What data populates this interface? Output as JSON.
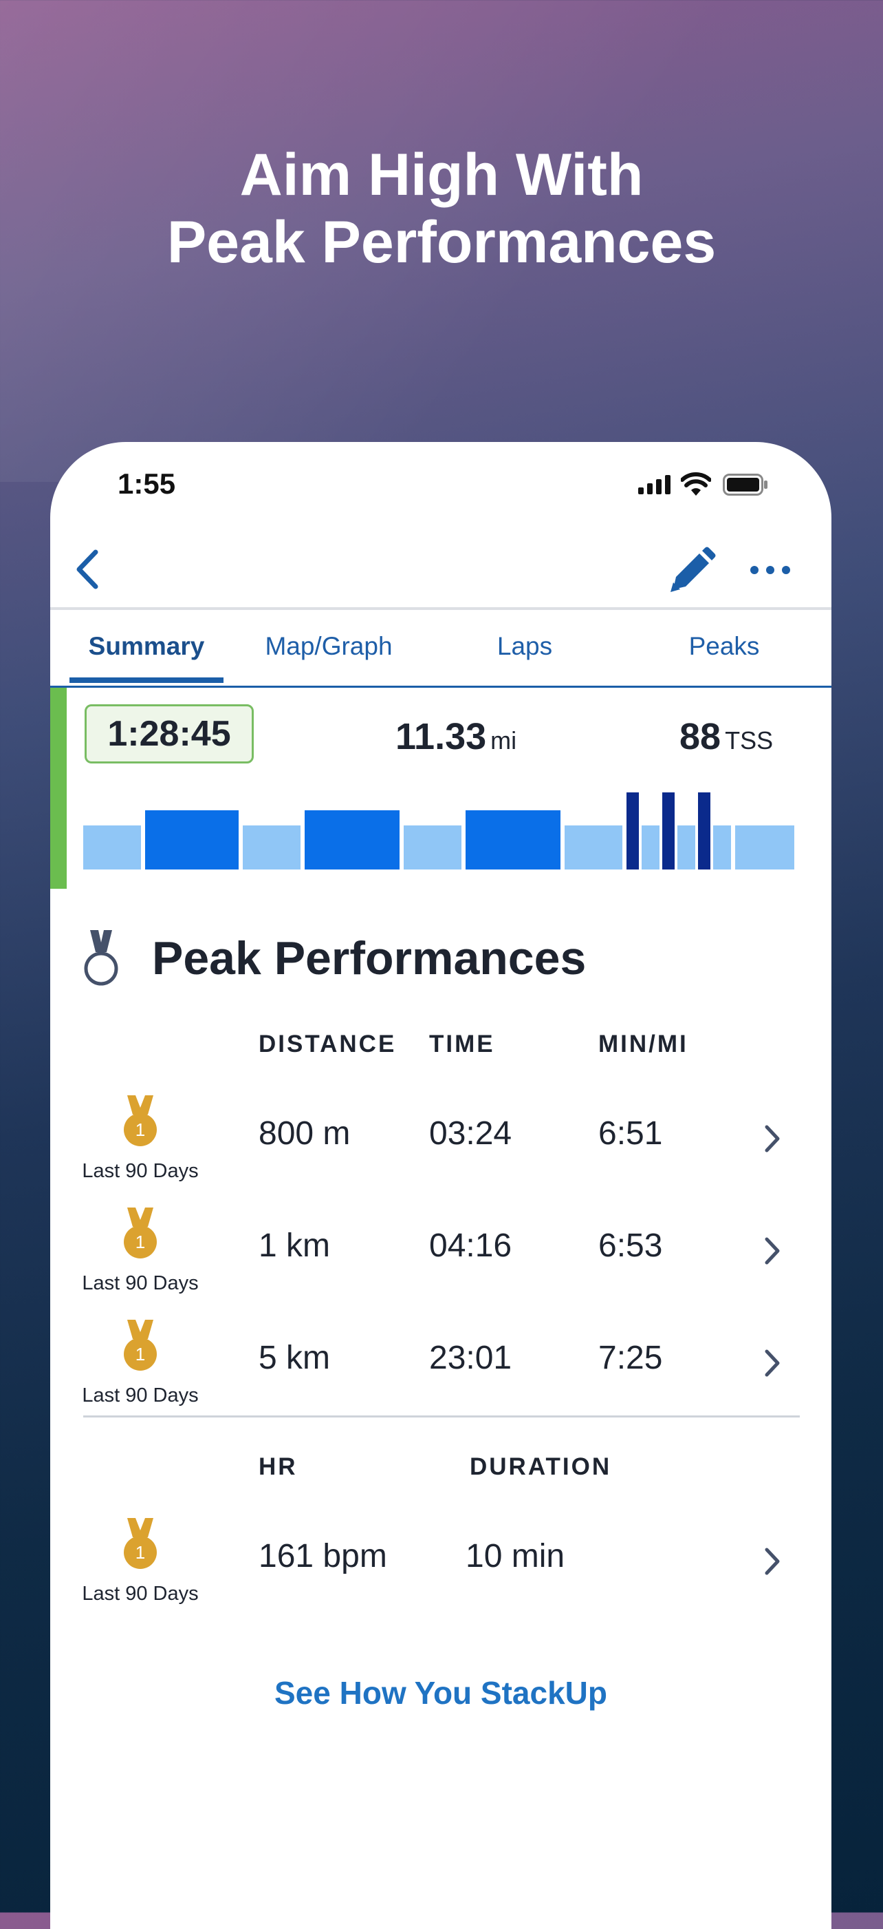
{
  "headline": {
    "line1": "Aim High With",
    "line2": "Peak Performances"
  },
  "status_bar": {
    "time": "1:55",
    "icons": [
      "signal-icon",
      "wifi-icon",
      "battery-icon"
    ]
  },
  "nav": {
    "icons": [
      "back-chevron-icon",
      "pencil-icon",
      "more-dots-icon"
    ]
  },
  "tabs": [
    {
      "label": "Summary",
      "active": true
    },
    {
      "label": "Map/Graph",
      "active": false
    },
    {
      "label": "Laps",
      "active": false
    },
    {
      "label": "Peaks",
      "active": false
    }
  ],
  "summary": {
    "duration": "1:28:45",
    "distance_value": "11.33",
    "distance_unit": "mi",
    "tss_value": "88",
    "tss_unit": "TSS",
    "colors": {
      "light": "#90c6f6",
      "medium": "#0a6fe8",
      "dark": "#0b2a8c",
      "accent": "#6bbd4f"
    }
  },
  "peak_performances": {
    "title": "Peak Performances",
    "pace_headers": {
      "distance": "DISTANCE",
      "time": "TIME",
      "pace": "MIN/MI"
    },
    "pace_rows": [
      {
        "badge": "1",
        "badge_label": "Last 90 Days",
        "distance": "800 m",
        "time": "03:24",
        "pace": "6:51"
      },
      {
        "badge": "1",
        "badge_label": "Last 90 Days",
        "distance": "1 km",
        "time": "04:16",
        "pace": "6:53"
      },
      {
        "badge": "1",
        "badge_label": "Last 90 Days",
        "distance": "5 km",
        "time": "23:01",
        "pace": "7:25"
      }
    ],
    "hr_headers": {
      "hr": "HR",
      "duration": "DURATION"
    },
    "hr_rows": [
      {
        "badge": "1",
        "badge_label": "Last 90 Days",
        "hr": "161 bpm",
        "duration": "10 min"
      }
    ],
    "medal_color": "#dba22f",
    "cta": "See How You StackUp"
  }
}
